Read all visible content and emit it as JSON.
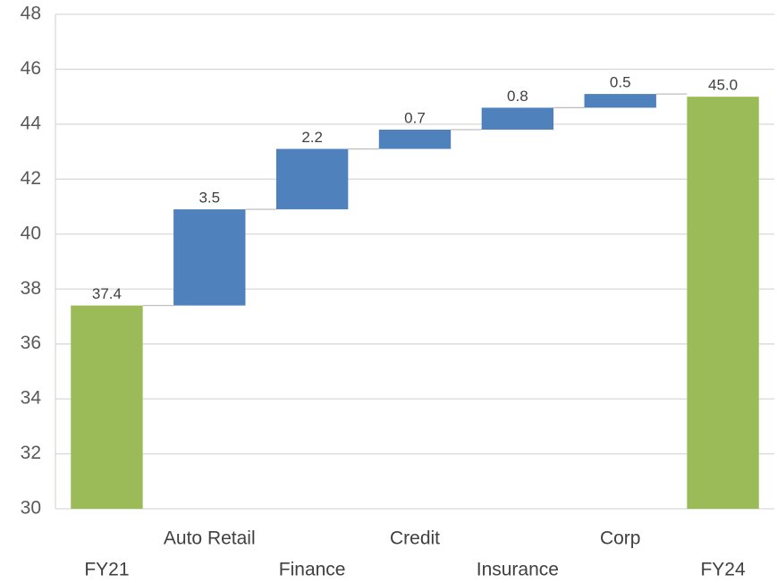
{
  "chart_data": {
    "type": "waterfall",
    "categories": [
      "FY21",
      "Auto Retail",
      "Finance",
      "Credit",
      "Insurance",
      "Corp",
      "FY24"
    ],
    "values": [
      37.4,
      3.5,
      2.2,
      0.7,
      0.8,
      0.5,
      45.0
    ],
    "value_labels": [
      "37.4",
      "3.5",
      "2.2",
      "0.7",
      "0.8",
      "0.5",
      "45.0"
    ],
    "is_total": [
      true,
      false,
      false,
      false,
      false,
      false,
      true
    ],
    "color": "#4f81bd",
    "total_color": "#9bbb59",
    "ylim": [
      30,
      48
    ],
    "yticks": [
      30,
      32,
      34,
      36,
      38,
      40,
      42,
      44,
      46,
      48
    ],
    "grid": true
  }
}
